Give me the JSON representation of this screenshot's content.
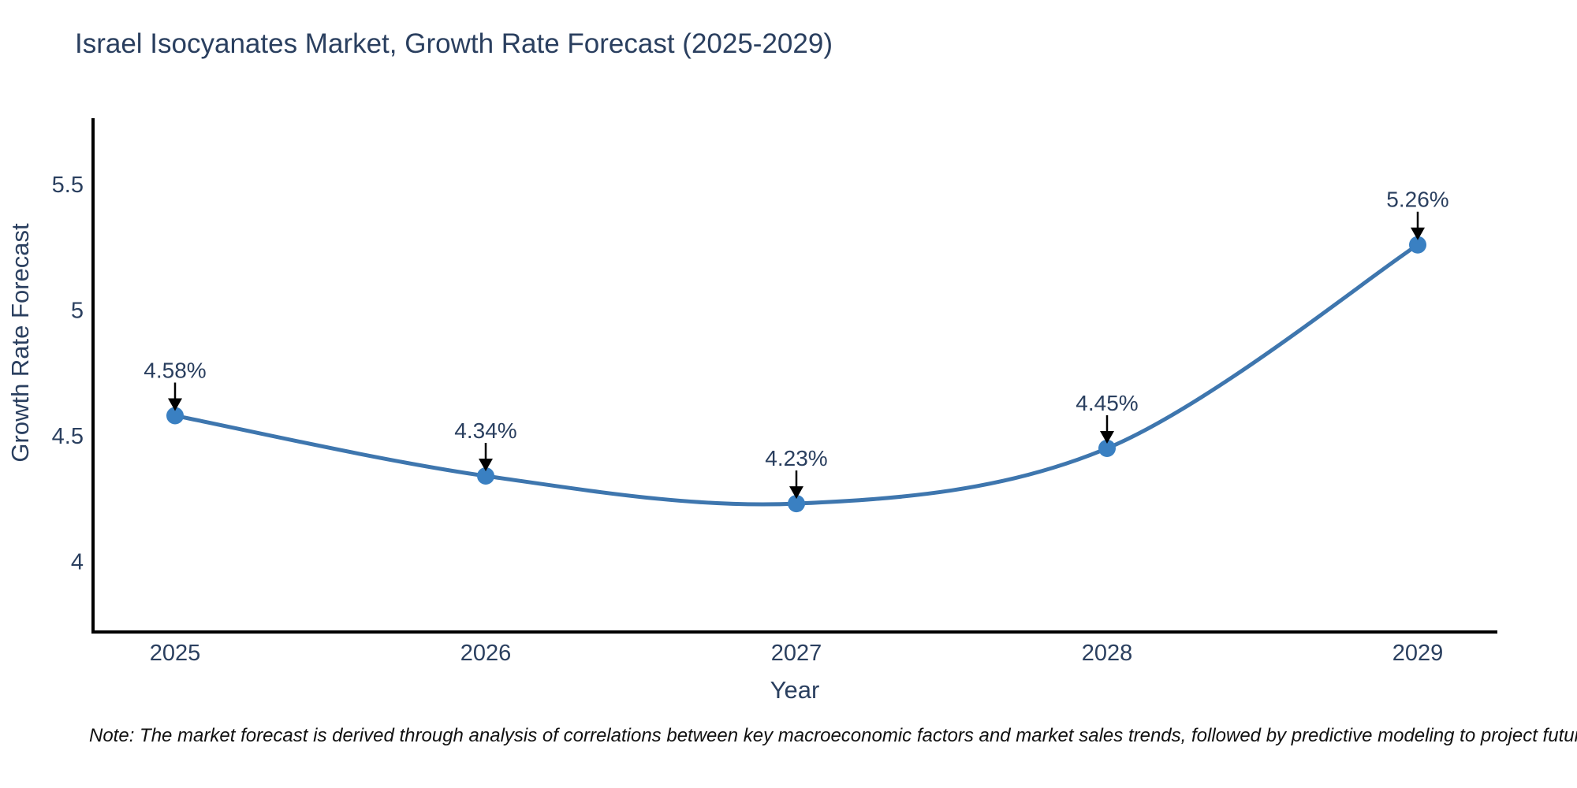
{
  "title": "Israel Isocyanates Market, Growth Rate Forecast (2025-2029)",
  "note": "Note: The market forecast is derived through analysis of correlations between key macroeconomic factors and market sales trends, followed by predictive modeling to project future sales",
  "chart_data": {
    "type": "line",
    "title": "Israel Isocyanates Market, Growth Rate Forecast (2025-2029)",
    "xlabel": "Year",
    "ylabel": "Growth Rate Forecast",
    "x": [
      2025,
      2026,
      2027,
      2028,
      2029
    ],
    "categories": [
      "2025",
      "2026",
      "2027",
      "2028",
      "2029"
    ],
    "values": [
      4.58,
      4.34,
      4.23,
      4.45,
      5.26
    ],
    "point_labels": [
      "4.58%",
      "4.34%",
      "4.23%",
      "4.45%",
      "5.26%"
    ],
    "yticks": [
      4,
      4.5,
      5,
      5.5
    ],
    "ytick_labels": [
      "4",
      "4.5",
      "5",
      "5.5"
    ],
    "ylim": [
      3.72,
      5.73
    ],
    "grid": false,
    "legend": "none",
    "line_shape": "spline",
    "markers": true,
    "annotations": "black arrow pointing down to each data point with percentage label above"
  },
  "colors": {
    "line": "#3e76ae",
    "marker": "#3a80c2",
    "axis_line": "#000000",
    "arrow": "#000000",
    "text": "#2a3f5f",
    "note_text": "#111111",
    "background": "#ffffff"
  }
}
